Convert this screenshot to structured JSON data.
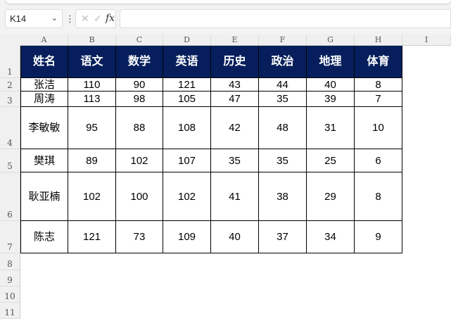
{
  "formula_bar": {
    "name_box": "K14",
    "formula": "",
    "fx_label": "fx"
  },
  "columns": [
    "A",
    "B",
    "C",
    "D",
    "E",
    "F",
    "G",
    "H",
    "I"
  ],
  "rows": [
    "1",
    "2",
    "3",
    "4",
    "5",
    "6",
    "7",
    "8",
    "9",
    "10",
    "11"
  ],
  "colors": {
    "header_fill": "#061f5c",
    "header_text": "#ffffff"
  },
  "table": {
    "headers": [
      "姓名",
      "语文",
      "数学",
      "英语",
      "历史",
      "政治",
      "地理",
      "体育"
    ],
    "rows": [
      [
        "张洁",
        "110",
        "90",
        "121",
        "43",
        "44",
        "40",
        "8"
      ],
      [
        "周涛",
        "113",
        "98",
        "105",
        "47",
        "35",
        "39",
        "7"
      ],
      [
        "李敏敏",
        "95",
        "88",
        "108",
        "42",
        "48",
        "31",
        "10"
      ],
      [
        "樊琪",
        "89",
        "102",
        "107",
        "35",
        "35",
        "25",
        "6"
      ],
      [
        "耿亚楠",
        "102",
        "100",
        "102",
        "41",
        "38",
        "29",
        "8"
      ],
      [
        "陈志",
        "121",
        "73",
        "109",
        "40",
        "37",
        "34",
        "9"
      ]
    ]
  }
}
